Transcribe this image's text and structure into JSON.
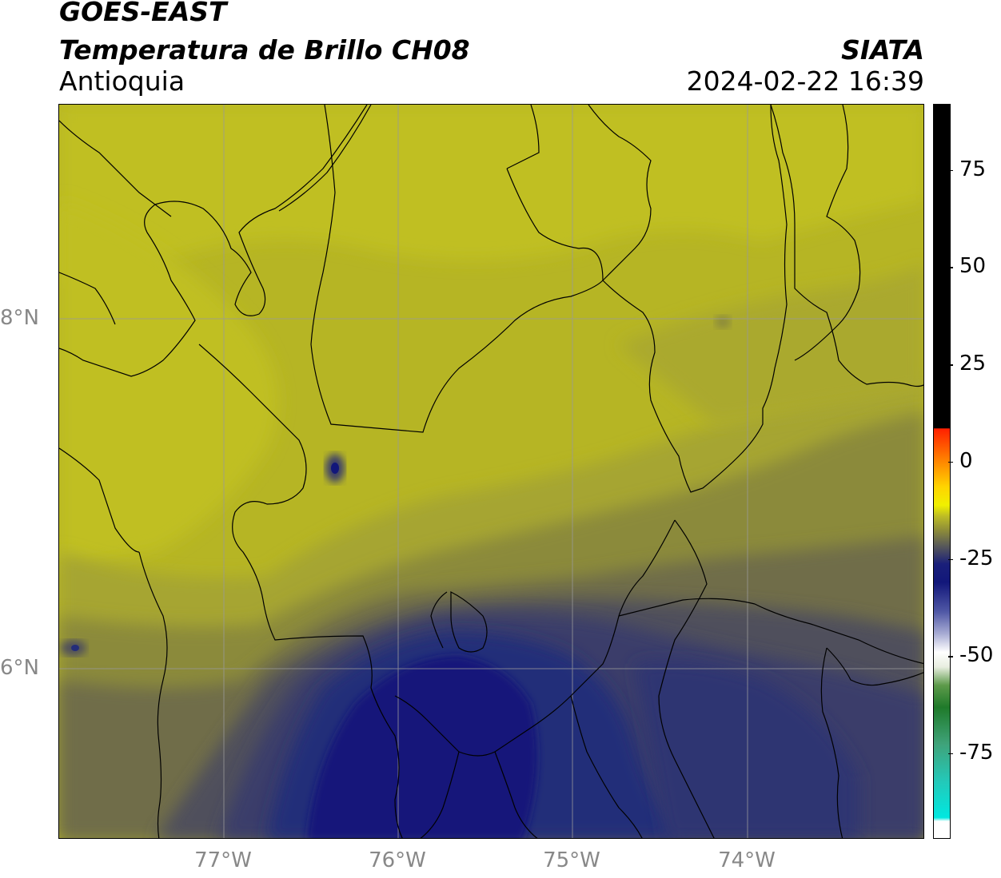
{
  "header": {
    "satellite": "GOES-EAST",
    "product": "Temperatura de Brillo CH08",
    "region": "Antioquia",
    "organization": "SIATA",
    "timestamp": "2024-02-22 16:39"
  },
  "map": {
    "lon_ticks": [
      "77°W",
      "76°W",
      "75°W",
      "74°W"
    ],
    "lat_ticks": [
      "8°N",
      "6°N"
    ],
    "palette": {
      "yellow_bright": "#c0bf22",
      "yellow": "#b6b524",
      "olive": "#a6a531",
      "olive_dark": "#8b8a3a",
      "gray_olive": "#6f6d48",
      "slate": "#4f4f5c",
      "navy_gray": "#3a3e6a",
      "navy": "#242d79",
      "deep_navy": "#12177a",
      "border_color": "#000000",
      "grid_color": "#999999"
    }
  },
  "colorbar": {
    "tick_labels": [
      "75",
      "50",
      "25",
      "0",
      "-25",
      "-50",
      "-75"
    ],
    "tick_values": [
      75,
      50,
      25,
      0,
      -25,
      -50,
      -75
    ],
    "range": [
      -97,
      92
    ]
  }
}
